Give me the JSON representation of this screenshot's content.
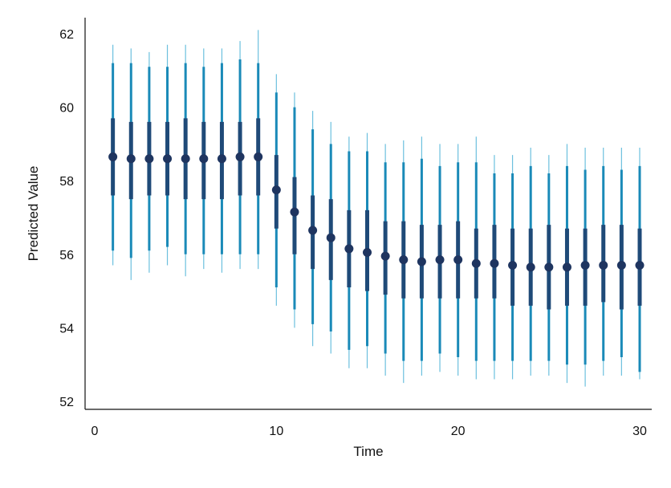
{
  "chart_data": {
    "type": "scatter",
    "title": "",
    "xlabel": "Time",
    "ylabel": "Predicted Value",
    "xlim": [
      0,
      31
    ],
    "ylim": [
      52,
      63
    ],
    "xticks": [
      0,
      10,
      20,
      30
    ],
    "yticks": [
      52,
      54,
      56,
      58,
      60,
      62
    ],
    "grid": false,
    "colors": {
      "point": "#1f3560",
      "inner_interval": "#1f4a78",
      "mid_interval": "#1a8ab8",
      "outer_interval": "#6cc0de",
      "axis": "#111111"
    },
    "points": [
      {
        "x": 1,
        "y": 58.65,
        "inner": [
          57.6,
          59.7
        ],
        "mid": [
          56.1,
          61.2
        ],
        "outer": [
          55.7,
          61.7
        ]
      },
      {
        "x": 2,
        "y": 58.6,
        "inner": [
          57.5,
          59.6
        ],
        "mid": [
          55.9,
          61.2
        ],
        "outer": [
          55.3,
          61.6
        ]
      },
      {
        "x": 3,
        "y": 58.6,
        "inner": [
          57.6,
          59.6
        ],
        "mid": [
          56.1,
          61.1
        ],
        "outer": [
          55.5,
          61.5
        ]
      },
      {
        "x": 4,
        "y": 58.6,
        "inner": [
          57.6,
          59.6
        ],
        "mid": [
          56.2,
          61.1
        ],
        "outer": [
          55.7,
          61.7
        ]
      },
      {
        "x": 5,
        "y": 58.6,
        "inner": [
          57.5,
          59.7
        ],
        "mid": [
          56.0,
          61.2
        ],
        "outer": [
          55.4,
          61.7
        ]
      },
      {
        "x": 6,
        "y": 58.6,
        "inner": [
          57.5,
          59.6
        ],
        "mid": [
          56.0,
          61.1
        ],
        "outer": [
          55.6,
          61.6
        ]
      },
      {
        "x": 7,
        "y": 58.6,
        "inner": [
          57.5,
          59.6
        ],
        "mid": [
          56.0,
          61.2
        ],
        "outer": [
          55.5,
          61.6
        ]
      },
      {
        "x": 8,
        "y": 58.65,
        "inner": [
          57.6,
          59.6
        ],
        "mid": [
          56.0,
          61.3
        ],
        "outer": [
          55.6,
          61.8
        ]
      },
      {
        "x": 9,
        "y": 58.65,
        "inner": [
          57.6,
          59.7
        ],
        "mid": [
          56.0,
          61.2
        ],
        "outer": [
          55.6,
          62.1
        ]
      },
      {
        "x": 10,
        "y": 57.75,
        "inner": [
          56.7,
          58.7
        ],
        "mid": [
          55.1,
          60.4
        ],
        "outer": [
          54.6,
          60.9
        ]
      },
      {
        "x": 11,
        "y": 57.15,
        "inner": [
          56.0,
          58.1
        ],
        "mid": [
          54.5,
          60.0
        ],
        "outer": [
          54.0,
          60.4
        ]
      },
      {
        "x": 12,
        "y": 56.65,
        "inner": [
          55.6,
          57.6
        ],
        "mid": [
          54.1,
          59.4
        ],
        "outer": [
          53.5,
          59.9
        ]
      },
      {
        "x": 13,
        "y": 56.45,
        "inner": [
          55.3,
          57.5
        ],
        "mid": [
          53.9,
          59.0
        ],
        "outer": [
          53.3,
          59.6
        ]
      },
      {
        "x": 14,
        "y": 56.15,
        "inner": [
          55.1,
          57.2
        ],
        "mid": [
          53.4,
          58.8
        ],
        "outer": [
          52.9,
          59.2
        ]
      },
      {
        "x": 15,
        "y": 56.05,
        "inner": [
          55.0,
          57.2
        ],
        "mid": [
          53.5,
          58.8
        ],
        "outer": [
          52.9,
          59.3
        ]
      },
      {
        "x": 16,
        "y": 55.95,
        "inner": [
          54.9,
          56.9
        ],
        "mid": [
          53.3,
          58.5
        ],
        "outer": [
          52.7,
          59.0
        ]
      },
      {
        "x": 17,
        "y": 55.85,
        "inner": [
          54.8,
          56.9
        ],
        "mid": [
          53.1,
          58.5
        ],
        "outer": [
          52.5,
          59.1
        ]
      },
      {
        "x": 18,
        "y": 55.8,
        "inner": [
          54.8,
          56.8
        ],
        "mid": [
          53.1,
          58.6
        ],
        "outer": [
          52.7,
          59.2
        ]
      },
      {
        "x": 19,
        "y": 55.85,
        "inner": [
          54.8,
          56.8
        ],
        "mid": [
          53.3,
          58.4
        ],
        "outer": [
          52.8,
          59.0
        ]
      },
      {
        "x": 20,
        "y": 55.85,
        "inner": [
          54.8,
          56.9
        ],
        "mid": [
          53.2,
          58.5
        ],
        "outer": [
          52.7,
          59.0
        ]
      },
      {
        "x": 21,
        "y": 55.75,
        "inner": [
          54.8,
          56.7
        ],
        "mid": [
          53.1,
          58.5
        ],
        "outer": [
          52.6,
          59.2
        ]
      },
      {
        "x": 22,
        "y": 55.75,
        "inner": [
          54.8,
          56.8
        ],
        "mid": [
          53.1,
          58.2
        ],
        "outer": [
          52.6,
          58.7
        ]
      },
      {
        "x": 23,
        "y": 55.7,
        "inner": [
          54.6,
          56.7
        ],
        "mid": [
          53.1,
          58.2
        ],
        "outer": [
          52.6,
          58.7
        ]
      },
      {
        "x": 24,
        "y": 55.65,
        "inner": [
          54.6,
          56.7
        ],
        "mid": [
          53.1,
          58.4
        ],
        "outer": [
          52.7,
          58.9
        ]
      },
      {
        "x": 25,
        "y": 55.65,
        "inner": [
          54.5,
          56.8
        ],
        "mid": [
          53.1,
          58.2
        ],
        "outer": [
          52.7,
          58.7
        ]
      },
      {
        "x": 26,
        "y": 55.65,
        "inner": [
          54.6,
          56.7
        ],
        "mid": [
          53.0,
          58.4
        ],
        "outer": [
          52.5,
          59.0
        ]
      },
      {
        "x": 27,
        "y": 55.7,
        "inner": [
          54.6,
          56.7
        ],
        "mid": [
          53.0,
          58.3
        ],
        "outer": [
          52.4,
          58.9
        ]
      },
      {
        "x": 28,
        "y": 55.7,
        "inner": [
          54.7,
          56.8
        ],
        "mid": [
          53.1,
          58.4
        ],
        "outer": [
          52.7,
          58.9
        ]
      },
      {
        "x": 29,
        "y": 55.7,
        "inner": [
          54.5,
          56.8
        ],
        "mid": [
          53.2,
          58.3
        ],
        "outer": [
          52.7,
          58.9
        ]
      },
      {
        "x": 30,
        "y": 55.7,
        "inner": [
          54.6,
          56.7
        ],
        "mid": [
          52.8,
          58.4
        ],
        "outer": [
          52.6,
          58.9
        ]
      }
    ]
  }
}
